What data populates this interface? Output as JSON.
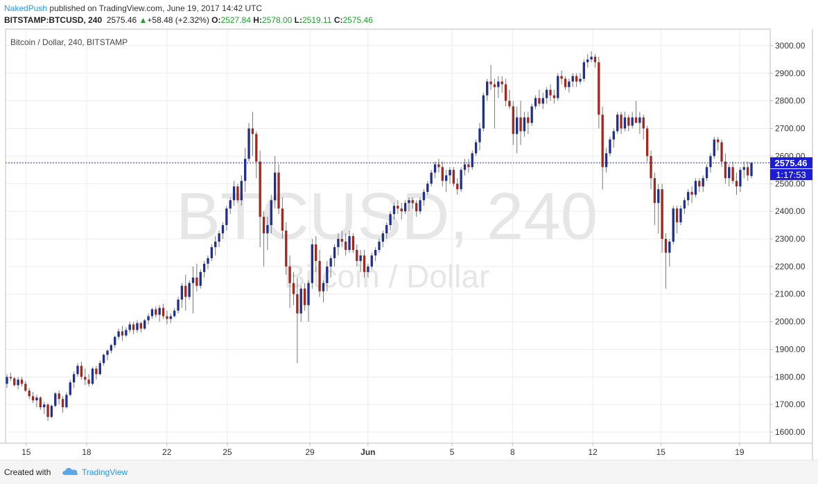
{
  "header": {
    "author": "NakedPush",
    "published": "published on TradingView.com, June 19, 2017 14:42 UTC",
    "symbol": "BITSTAMP:BTCUSD, 240",
    "last": "2575.46",
    "change": "+58.48 (+2.32%)",
    "o_label": "O:",
    "o_value": "2527.84",
    "h_label": "H:",
    "h_value": "2578.00",
    "l_label": "L:",
    "l_value": "2519.11",
    "c_label": "C:",
    "c_value": "2575.46"
  },
  "footer": {
    "created_with": "Created with",
    "brand": "TradingView"
  },
  "colors": {
    "up": "#1e2f8c",
    "down": "#a0281f",
    "grid": "#ececec",
    "price_line": "#1a1ab8",
    "price_label_bg": "#1c1cd6",
    "watermark": "#e6e6e6"
  },
  "chart_data": {
    "type": "candlestick",
    "title": "Bitcoin / Dollar, 240, BITSTAMP",
    "watermark_main": "BTCUSD, 240",
    "watermark_sub": "Bitcoin / Dollar",
    "ylim": [
      1560,
      3060
    ],
    "y_ticks": [
      "1600.00",
      "1700.00",
      "1800.00",
      "1900.00",
      "2000.00",
      "2100.00",
      "2200.00",
      "2300.00",
      "2400.00",
      "2500.00",
      "2600.00",
      "2700.00",
      "2800.00",
      "2900.00",
      "3000.00"
    ],
    "x_ticks": [
      "15",
      "18",
      "22",
      "25",
      "29",
      "Jun",
      "5",
      "8",
      "12",
      "15",
      "19"
    ],
    "last_price": "2575.46",
    "countdown": "1:17:53",
    "candles": [
      [
        1775,
        1810,
        1760,
        1800
      ],
      [
        1800,
        1815,
        1785,
        1795
      ],
      [
        1795,
        1800,
        1765,
        1770
      ],
      [
        1770,
        1800,
        1755,
        1790
      ],
      [
        1790,
        1800,
        1765,
        1775
      ],
      [
        1775,
        1785,
        1745,
        1750
      ],
      [
        1750,
        1760,
        1720,
        1730
      ],
      [
        1730,
        1745,
        1705,
        1715
      ],
      [
        1715,
        1735,
        1690,
        1725
      ],
      [
        1725,
        1730,
        1680,
        1690
      ],
      [
        1690,
        1710,
        1665,
        1700
      ],
      [
        1700,
        1705,
        1640,
        1655
      ],
      [
        1655,
        1700,
        1650,
        1695
      ],
      [
        1695,
        1745,
        1690,
        1740
      ],
      [
        1740,
        1750,
        1700,
        1720
      ],
      [
        1720,
        1730,
        1670,
        1690
      ],
      [
        1690,
        1745,
        1685,
        1735
      ],
      [
        1735,
        1790,
        1730,
        1780
      ],
      [
        1780,
        1820,
        1760,
        1810
      ],
      [
        1810,
        1850,
        1800,
        1840
      ],
      [
        1840,
        1855,
        1790,
        1800
      ],
      [
        1800,
        1830,
        1770,
        1790
      ],
      [
        1790,
        1810,
        1765,
        1775
      ],
      [
        1775,
        1835,
        1770,
        1830
      ],
      [
        1830,
        1840,
        1790,
        1810
      ],
      [
        1810,
        1860,
        1805,
        1850
      ],
      [
        1850,
        1885,
        1840,
        1880
      ],
      [
        1880,
        1900,
        1860,
        1895
      ],
      [
        1895,
        1920,
        1885,
        1915
      ],
      [
        1915,
        1950,
        1905,
        1945
      ],
      [
        1945,
        1975,
        1935,
        1965
      ],
      [
        1965,
        1985,
        1930,
        1950
      ],
      [
        1950,
        1980,
        1945,
        1970
      ],
      [
        1970,
        2000,
        1960,
        1990
      ],
      [
        1990,
        2000,
        1955,
        1970
      ],
      [
        1970,
        2005,
        1960,
        1995
      ],
      [
        1995,
        2000,
        1960,
        1975
      ],
      [
        1975,
        2010,
        1970,
        2005
      ],
      [
        2005,
        2030,
        1990,
        2020
      ],
      [
        2020,
        2050,
        2010,
        2045
      ],
      [
        2045,
        2055,
        2015,
        2025
      ],
      [
        2025,
        2060,
        2000,
        2050
      ],
      [
        2050,
        2065,
        2010,
        2020
      ],
      [
        2020,
        2040,
        1990,
        2010
      ],
      [
        2010,
        2030,
        1995,
        2020
      ],
      [
        2020,
        2050,
        2015,
        2040
      ],
      [
        2040,
        2090,
        2030,
        2080
      ],
      [
        2080,
        2140,
        2050,
        2130
      ],
      [
        2130,
        2170,
        2040,
        2090
      ],
      [
        2090,
        2150,
        2080,
        2140
      ],
      [
        2140,
        2200,
        2030,
        2160
      ],
      [
        2160,
        2210,
        2110,
        2130
      ],
      [
        2130,
        2190,
        2120,
        2180
      ],
      [
        2180,
        2220,
        2160,
        2210
      ],
      [
        2210,
        2240,
        2190,
        2230
      ],
      [
        2230,
        2280,
        2220,
        2270
      ],
      [
        2270,
        2310,
        2240,
        2290
      ],
      [
        2290,
        2330,
        2270,
        2320
      ],
      [
        2320,
        2360,
        2300,
        2350
      ],
      [
        2350,
        2420,
        2330,
        2410
      ],
      [
        2410,
        2450,
        2390,
        2440
      ],
      [
        2440,
        2510,
        2420,
        2490
      ],
      [
        2490,
        2500,
        2430,
        2440
      ],
      [
        2440,
        2530,
        2420,
        2510
      ],
      [
        2510,
        2630,
        2470,
        2590
      ],
      [
        2590,
        2720,
        2580,
        2700
      ],
      [
        2700,
        2760,
        2600,
        2680
      ],
      [
        2680,
        2690,
        2520,
        2580
      ],
      [
        2580,
        2620,
        2270,
        2380
      ],
      [
        2380,
        2400,
        2200,
        2320
      ],
      [
        2320,
        2380,
        2260,
        2350
      ],
      [
        2350,
        2460,
        2320,
        2440
      ],
      [
        2440,
        2600,
        2410,
        2540
      ],
      [
        2540,
        2570,
        2390,
        2410
      ],
      [
        2410,
        2450,
        2300,
        2330
      ],
      [
        2330,
        2360,
        2170,
        2200
      ],
      [
        2200,
        2240,
        2050,
        2140
      ],
      [
        2140,
        2180,
        2060,
        2100
      ],
      [
        2100,
        2160,
        1850,
        2030
      ],
      [
        2030,
        2130,
        2000,
        2120
      ],
      [
        2120,
        2140,
        2040,
        2060
      ],
      [
        2060,
        2150,
        2000,
        2140
      ],
      [
        2140,
        2300,
        2120,
        2280
      ],
      [
        2280,
        2310,
        2180,
        2220
      ],
      [
        2220,
        2260,
        2090,
        2110
      ],
      [
        2110,
        2150,
        2070,
        2140
      ],
      [
        2140,
        2220,
        2110,
        2200
      ],
      [
        2200,
        2240,
        2160,
        2230
      ],
      [
        2230,
        2280,
        2200,
        2270
      ],
      [
        2270,
        2320,
        2240,
        2300
      ],
      [
        2300,
        2330,
        2270,
        2290
      ],
      [
        2290,
        2320,
        2240,
        2260
      ],
      [
        2260,
        2330,
        2250,
        2310
      ],
      [
        2310,
        2320,
        2250,
        2260
      ],
      [
        2260,
        2280,
        2200,
        2220
      ],
      [
        2220,
        2260,
        2180,
        2240
      ],
      [
        2240,
        2260,
        2160,
        2180
      ],
      [
        2180,
        2210,
        2160,
        2200
      ],
      [
        2200,
        2250,
        2190,
        2240
      ],
      [
        2240,
        2270,
        2220,
        2260
      ],
      [
        2260,
        2300,
        2250,
        2290
      ],
      [
        2290,
        2330,
        2270,
        2320
      ],
      [
        2320,
        2360,
        2300,
        2350
      ],
      [
        2350,
        2400,
        2330,
        2390
      ],
      [
        2390,
        2430,
        2370,
        2420
      ],
      [
        2420,
        2440,
        2390,
        2410
      ],
      [
        2410,
        2430,
        2370,
        2400
      ],
      [
        2400,
        2440,
        2390,
        2430
      ],
      [
        2430,
        2450,
        2400,
        2440
      ],
      [
        2440,
        2450,
        2410,
        2430
      ],
      [
        2430,
        2440,
        2380,
        2400
      ],
      [
        2400,
        2450,
        2390,
        2440
      ],
      [
        2440,
        2480,
        2420,
        2470
      ],
      [
        2470,
        2510,
        2460,
        2500
      ],
      [
        2500,
        2550,
        2490,
        2540
      ],
      [
        2540,
        2580,
        2520,
        2570
      ],
      [
        2570,
        2590,
        2540,
        2560
      ],
      [
        2560,
        2580,
        2490,
        2510
      ],
      [
        2510,
        2550,
        2470,
        2530
      ],
      [
        2530,
        2560,
        2500,
        2550
      ],
      [
        2550,
        2560,
        2490,
        2500
      ],
      [
        2500,
        2520,
        2460,
        2480
      ],
      [
        2480,
        2560,
        2470,
        2550
      ],
      [
        2550,
        2590,
        2530,
        2570
      ],
      [
        2570,
        2590,
        2540,
        2560
      ],
      [
        2560,
        2620,
        2550,
        2610
      ],
      [
        2610,
        2660,
        2600,
        2650
      ],
      [
        2650,
        2720,
        2620,
        2700
      ],
      [
        2700,
        2830,
        2690,
        2820
      ],
      [
        2820,
        2880,
        2800,
        2870
      ],
      [
        2870,
        2930,
        2840,
        2860
      ],
      [
        2860,
        2880,
        2700,
        2850
      ],
      [
        2850,
        2890,
        2810,
        2870
      ],
      [
        2870,
        2890,
        2830,
        2860
      ],
      [
        2860,
        2880,
        2780,
        2800
      ],
      [
        2800,
        2840,
        2770,
        2780
      ],
      [
        2780,
        2800,
        2640,
        2680
      ],
      [
        2680,
        2780,
        2610,
        2740
      ],
      [
        2740,
        2800,
        2640,
        2690
      ],
      [
        2690,
        2760,
        2670,
        2740
      ],
      [
        2740,
        2760,
        2680,
        2720
      ],
      [
        2720,
        2790,
        2710,
        2780
      ],
      [
        2780,
        2820,
        2770,
        2810
      ],
      [
        2810,
        2840,
        2780,
        2790
      ],
      [
        2790,
        2830,
        2770,
        2810
      ],
      [
        2810,
        2850,
        2790,
        2840
      ],
      [
        2840,
        2860,
        2800,
        2820
      ],
      [
        2820,
        2840,
        2790,
        2810
      ],
      [
        2810,
        2900,
        2800,
        2890
      ],
      [
        2890,
        2910,
        2860,
        2880
      ],
      [
        2880,
        2890,
        2840,
        2850
      ],
      [
        2850,
        2880,
        2830,
        2870
      ],
      [
        2870,
        2900,
        2850,
        2890
      ],
      [
        2890,
        2900,
        2850,
        2870
      ],
      [
        2870,
        2900,
        2860,
        2880
      ],
      [
        2880,
        2950,
        2870,
        2940
      ],
      [
        2940,
        2970,
        2920,
        2950
      ],
      [
        2950,
        2980,
        2940,
        2960
      ],
      [
        2960,
        2970,
        2920,
        2940
      ],
      [
        2940,
        2960,
        2700,
        2750
      ],
      [
        2750,
        2780,
        2480,
        2560
      ],
      [
        2560,
        2630,
        2540,
        2610
      ],
      [
        2610,
        2670,
        2600,
        2660
      ],
      [
        2660,
        2700,
        2630,
        2690
      ],
      [
        2690,
        2760,
        2680,
        2750
      ],
      [
        2750,
        2760,
        2680,
        2700
      ],
      [
        2700,
        2760,
        2690,
        2740
      ],
      [
        2740,
        2750,
        2690,
        2710
      ],
      [
        2710,
        2760,
        2700,
        2740
      ],
      [
        2740,
        2800,
        2720,
        2720
      ],
      [
        2720,
        2760,
        2680,
        2740
      ],
      [
        2740,
        2750,
        2660,
        2700
      ],
      [
        2700,
        2710,
        2580,
        2600
      ],
      [
        2600,
        2620,
        2480,
        2520
      ],
      [
        2520,
        2540,
        2350,
        2430
      ],
      [
        2430,
        2500,
        2320,
        2480
      ],
      [
        2480,
        2500,
        2250,
        2300
      ],
      [
        2300,
        2320,
        2120,
        2250
      ],
      [
        2250,
        2300,
        2200,
        2290
      ],
      [
        2290,
        2420,
        2280,
        2410
      ],
      [
        2410,
        2420,
        2320,
        2360
      ],
      [
        2360,
        2420,
        2350,
        2410
      ],
      [
        2410,
        2450,
        2390,
        2440
      ],
      [
        2440,
        2480,
        2420,
        2470
      ],
      [
        2470,
        2490,
        2430,
        2460
      ],
      [
        2460,
        2520,
        2450,
        2510
      ],
      [
        2510,
        2520,
        2470,
        2490
      ],
      [
        2490,
        2530,
        2470,
        2520
      ],
      [
        2520,
        2570,
        2510,
        2560
      ],
      [
        2560,
        2610,
        2540,
        2600
      ],
      [
        2600,
        2670,
        2590,
        2660
      ],
      [
        2660,
        2670,
        2620,
        2650
      ],
      [
        2650,
        2660,
        2560,
        2580
      ],
      [
        2580,
        2610,
        2500,
        2520
      ],
      [
        2520,
        2570,
        2490,
        2560
      ],
      [
        2560,
        2580,
        2500,
        2510
      ],
      [
        2510,
        2540,
        2460,
        2490
      ],
      [
        2490,
        2560,
        2470,
        2550
      ],
      [
        2550,
        2580,
        2520,
        2560
      ],
      [
        2560,
        2580,
        2510,
        2530
      ],
      [
        2527.84,
        2578,
        2519.11,
        2575.46
      ]
    ]
  }
}
